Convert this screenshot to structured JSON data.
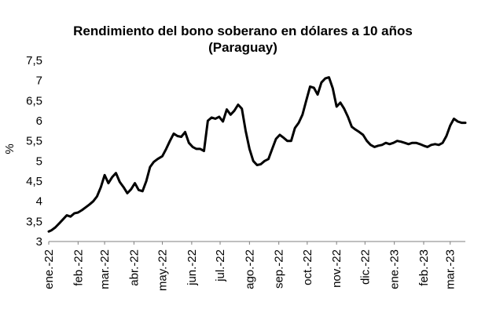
{
  "chart_data": {
    "type": "line",
    "title": "Rendimiento del bono soberano en dólares a 10 años",
    "subtitle": "(Paraguay)",
    "xlabel": "",
    "ylabel": "%",
    "ylim": [
      3,
      7.5
    ],
    "yticks": [
      "3",
      "3,5",
      "4",
      "4,5",
      "5",
      "5,5",
      "6",
      "6,5",
      "7",
      "7,5"
    ],
    "xticks": [
      "ene.-22",
      "feb.-22",
      "mar.-22",
      "abr.-22",
      "may.-22",
      "jun.-22",
      "jul.-22",
      "ago.-22",
      "sep.-22",
      "oct.-22",
      "nov.-22",
      "dic.-22",
      "ene.-23",
      "feb.-23",
      "mar.-23"
    ],
    "grid": false,
    "legend": "none",
    "line_color": "#000000",
    "series": [
      {
        "x": [
          "2022-01-01",
          "2022-01-04",
          "2022-01-08",
          "2022-01-12",
          "2022-01-16",
          "2022-01-20",
          "2022-01-24",
          "2022-01-28",
          "2022-02-01",
          "2022-02-05",
          "2022-02-09",
          "2022-02-13",
          "2022-02-17",
          "2022-02-21",
          "2022-02-25",
          "2022-03-01",
          "2022-03-05",
          "2022-03-09",
          "2022-03-13",
          "2022-03-17",
          "2022-03-21",
          "2022-03-25",
          "2022-03-29",
          "2022-04-02",
          "2022-04-06",
          "2022-04-10",
          "2022-04-14",
          "2022-04-18",
          "2022-04-22",
          "2022-04-26",
          "2022-05-01",
          "2022-05-05",
          "2022-05-09",
          "2022-05-13",
          "2022-05-17",
          "2022-05-21",
          "2022-05-25",
          "2022-05-29",
          "2022-06-02",
          "2022-06-06",
          "2022-06-10",
          "2022-06-14",
          "2022-06-18",
          "2022-06-22",
          "2022-06-26",
          "2022-06-30",
          "2022-07-04",
          "2022-07-08",
          "2022-07-12",
          "2022-07-16",
          "2022-07-20",
          "2022-07-24",
          "2022-07-28",
          "2022-08-01",
          "2022-08-05",
          "2022-08-09",
          "2022-08-13",
          "2022-08-17",
          "2022-08-21",
          "2022-08-25",
          "2022-08-29",
          "2022-09-02",
          "2022-09-06",
          "2022-09-10",
          "2022-09-14",
          "2022-09-18",
          "2022-09-22",
          "2022-09-26",
          "2022-09-30",
          "2022-10-04",
          "2022-10-08",
          "2022-10-12",
          "2022-10-16",
          "2022-10-20",
          "2022-10-24",
          "2022-10-28",
          "2022-11-01",
          "2022-11-05",
          "2022-11-09",
          "2022-11-13",
          "2022-11-17",
          "2022-11-21",
          "2022-11-25",
          "2022-11-29",
          "2022-12-03",
          "2022-12-07",
          "2022-12-11",
          "2022-12-15",
          "2022-12-19",
          "2022-12-23",
          "2022-12-27",
          "2022-12-31",
          "2023-01-04",
          "2023-01-08",
          "2023-01-12",
          "2023-01-16",
          "2023-01-20",
          "2023-01-24",
          "2023-01-28",
          "2023-02-01",
          "2023-02-05",
          "2023-02-09",
          "2023-02-13",
          "2023-02-17",
          "2023-02-21",
          "2023-02-25",
          "2023-03-01",
          "2023-03-05",
          "2023-03-09",
          "2023-03-13",
          "2023-03-17"
        ],
        "values": [
          3.25,
          3.28,
          3.35,
          3.45,
          3.55,
          3.65,
          3.62,
          3.7,
          3.72,
          3.78,
          3.85,
          3.92,
          4.0,
          4.12,
          4.35,
          4.65,
          4.45,
          4.6,
          4.7,
          4.48,
          4.35,
          4.2,
          4.3,
          4.45,
          4.28,
          4.25,
          4.5,
          4.85,
          4.98,
          5.05,
          5.12,
          5.3,
          5.5,
          5.68,
          5.62,
          5.6,
          5.72,
          5.45,
          5.35,
          5.3,
          5.3,
          5.25,
          6.0,
          6.08,
          6.05,
          6.1,
          5.98,
          6.28,
          6.15,
          6.25,
          6.4,
          6.3,
          5.75,
          5.3,
          5.0,
          4.9,
          4.92,
          5.0,
          5.05,
          5.3,
          5.55,
          5.65,
          5.58,
          5.5,
          5.5,
          5.82,
          5.95,
          6.15,
          6.5,
          6.85,
          6.82,
          6.65,
          6.95,
          7.05,
          7.08,
          6.8,
          6.35,
          6.45,
          6.3,
          6.1,
          5.85,
          5.78,
          5.72,
          5.65,
          5.5,
          5.4,
          5.35,
          5.38,
          5.4,
          5.45,
          5.42,
          5.45,
          5.5,
          5.48,
          5.45,
          5.42,
          5.45,
          5.45,
          5.42,
          5.38,
          5.35,
          5.4,
          5.42,
          5.4,
          5.45,
          5.62,
          5.88,
          6.05,
          5.98,
          5.95,
          5.95
        ]
      }
    ]
  }
}
